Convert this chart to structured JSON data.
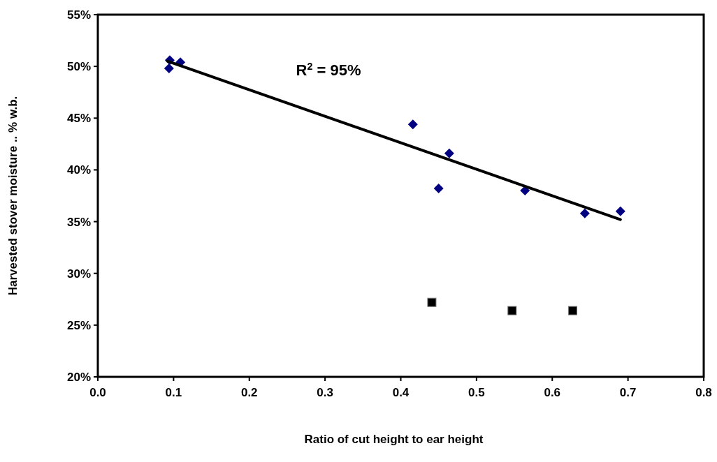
{
  "chart_data": {
    "type": "scatter",
    "xlabel": "Ratio of cut height to ear height",
    "ylabel": "Harvested stover moisture .. % w.b.",
    "annotations": [
      "R$^{2}$ = 95%"
    ],
    "xlim": [
      0,
      0.8
    ],
    "xticks": [
      {
        "value": 0,
        "label": "0.0"
      },
      {
        "value": 0.1,
        "label": "0.1"
      },
      {
        "value": 0.2,
        "label": "0.2"
      },
      {
        "value": 0.3,
        "label": "0.3"
      },
      {
        "value": 0.4,
        "label": "0.4"
      },
      {
        "value": 0.5,
        "label": "0.5"
      },
      {
        "value": 0.6,
        "label": "0.6"
      },
      {
        "value": 0.7,
        "label": "0.7"
      },
      {
        "value": 0.8,
        "label": "0.8"
      }
    ],
    "ylim": [
      20,
      55
    ],
    "yticks": [
      {
        "value": 20,
        "label": "20%"
      },
      {
        "value": 25,
        "label": "25%"
      },
      {
        "value": 30,
        "label": "30%"
      },
      {
        "value": 35,
        "label": "35%"
      },
      {
        "value": 40,
        "label": "40%"
      },
      {
        "value": 45,
        "label": "45%"
      },
      {
        "value": 50,
        "label": "50%"
      },
      {
        "value": 55,
        "label": "55%"
      }
    ],
    "grid": false,
    "series": [
      {
        "marker": "diamond",
        "color": "#000080",
        "x": [
          0.095,
          0.094,
          0.109,
          0.416,
          0.464,
          0.45,
          0.564,
          0.643,
          0.69
        ],
        "values": [
          50.6,
          49.8,
          50.4,
          44.4,
          41.6,
          38.2,
          38.0,
          35.8,
          36.0
        ]
      },
      {
        "marker": "square",
        "color": "#000000",
        "x": [
          0.441,
          0.547,
          0.627
        ],
        "values": [
          27.2,
          26.4,
          26.4
        ]
      },
      {
        "type": "line",
        "marker": "none",
        "line_style": "solid",
        "color": "#000000",
        "x": [
          0.092,
          0.69
        ],
        "values": [
          50.5,
          35.2
        ]
      }
    ]
  }
}
